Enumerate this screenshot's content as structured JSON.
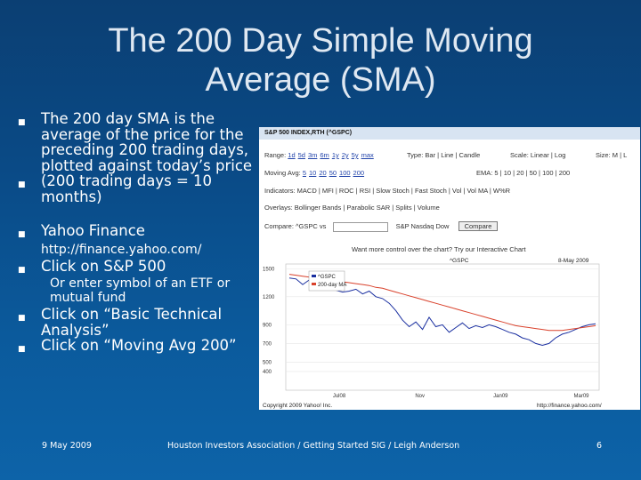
{
  "slide": {
    "title_line1": "The 200 Day Simple Moving",
    "title_line2": "Average (SMA)",
    "bullets": [
      {
        "text": "The 200 day SMA is the average of the price for the preceding 200 trading days, plotted against today’s price"
      },
      {
        "text": "(200 trading days = 10 months)"
      },
      {
        "text": "Yahoo Finance"
      },
      {
        "sub": "http://finance.yahoo.com/"
      },
      {
        "text": "Click on S&P 500"
      },
      {
        "sub": "Or enter symbol of an ETF or mutual fund"
      },
      {
        "text": "Click on “Basic Technical Analysis”"
      },
      {
        "text": "Click on “Moving Avg 200”"
      }
    ],
    "footer_date": "9 May 2009",
    "footer_center": "Houston Investors Association / Getting Started SIG / Leigh Anderson",
    "footer_page": "6"
  },
  "screenshot": {
    "header": "S&P 500 INDEX,RTH (^GSPC)",
    "range_label": "Range:",
    "range_links": [
      "1d",
      "5d",
      "3m",
      "6m",
      "1y",
      "2y",
      "5y",
      "max"
    ],
    "type_label": "Type: Bar | Line | Candle",
    "scale_label": "Scale: Linear | Log",
    "size_label": "Size: M | L",
    "mavg_label": "Moving Avg:",
    "mavg_links": [
      "5",
      "10",
      "20",
      "50",
      "100",
      "200"
    ],
    "ema_label": "EMA: 5 | 10 | 20 | 50 | 100 | 200",
    "indicators": "Indicators: MACD | MFI | ROC | RSI | Slow Stoch | Fast Stoch | Vol | Vol MA | W%R",
    "overlays": "Overlays: Bollinger Bands | Parabolic SAR | Splits | Volume",
    "compare_label": "Compare: ^GSPC vs",
    "compare_options": "S&P   Nasdaq   Dow",
    "compare_button": "Compare",
    "more_control": "Want more control over the chart? Try our Interactive Chart",
    "chart_left_label": "^GSPC",
    "chart_right_label": "8-May 2009",
    "legend": [
      "^GSPC",
      "200-day MA"
    ],
    "copyright": "Copyright 2009 Yahoo! Inc.",
    "url": "http://finance.yahoo.com/"
  },
  "chart_data": {
    "type": "line",
    "x_ticks": [
      "Jul08",
      "Nov",
      "Jan09",
      "Mar09"
    ],
    "y_ticks": [
      1500,
      1200,
      900,
      700,
      500,
      400
    ],
    "ylim": [
      200,
      1550
    ],
    "series": [
      {
        "name": "^GSPC",
        "color": "#1a2fa0",
        "values": [
          1400,
          1390,
          1330,
          1380,
          1290,
          1350,
          1300,
          1270,
          1250,
          1260,
          1280,
          1230,
          1260,
          1200,
          1180,
          1130,
          1050,
          950,
          880,
          930,
          850,
          980,
          880,
          900,
          820,
          870,
          920,
          860,
          890,
          870,
          900,
          880,
          850,
          820,
          800,
          760,
          740,
          700,
          680,
          700,
          760,
          800,
          820,
          850,
          880,
          900,
          910
        ]
      },
      {
        "name": "200-day MA",
        "color": "#d9412b",
        "values": [
          1440,
          1430,
          1420,
          1410,
          1400,
          1390,
          1380,
          1370,
          1360,
          1350,
          1340,
          1330,
          1320,
          1300,
          1290,
          1270,
          1250,
          1230,
          1210,
          1190,
          1170,
          1150,
          1130,
          1110,
          1090,
          1070,
          1050,
          1030,
          1010,
          990,
          970,
          950,
          930,
          910,
          890,
          880,
          870,
          860,
          850,
          840,
          840,
          840,
          850,
          860,
          870,
          880,
          890
        ]
      }
    ]
  }
}
